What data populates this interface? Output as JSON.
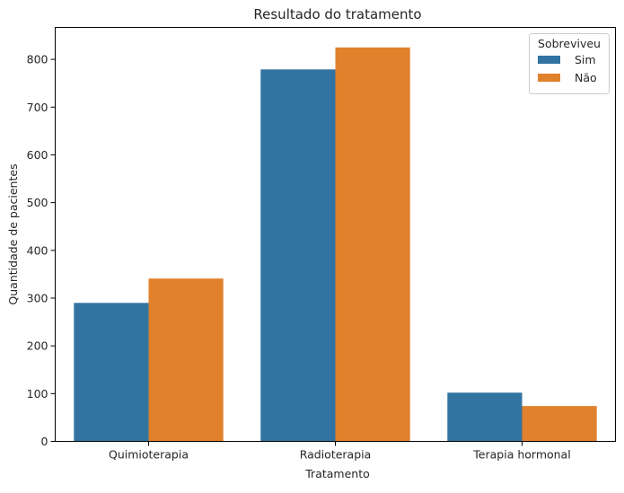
{
  "chart_data": {
    "type": "bar",
    "title": "Resultado do tratamento",
    "xlabel": "Tratamento",
    "ylabel": "Quantidade de pacientes",
    "categories": [
      "Quimioterapia",
      "Radioterapia",
      "Terapia hormonal"
    ],
    "series": [
      {
        "name": "Sim",
        "color": "#3274a1",
        "values": [
          290,
          779,
          102
        ]
      },
      {
        "name": "Não",
        "color": "#e1812c",
        "values": [
          341,
          825,
          74
        ]
      }
    ],
    "ylim": [
      0,
      867
    ],
    "yticks": [
      0,
      100,
      200,
      300,
      400,
      500,
      600,
      700,
      800
    ],
    "legend": {
      "title": "Sobreviveu",
      "placement": "top-right"
    },
    "grid": false
  }
}
